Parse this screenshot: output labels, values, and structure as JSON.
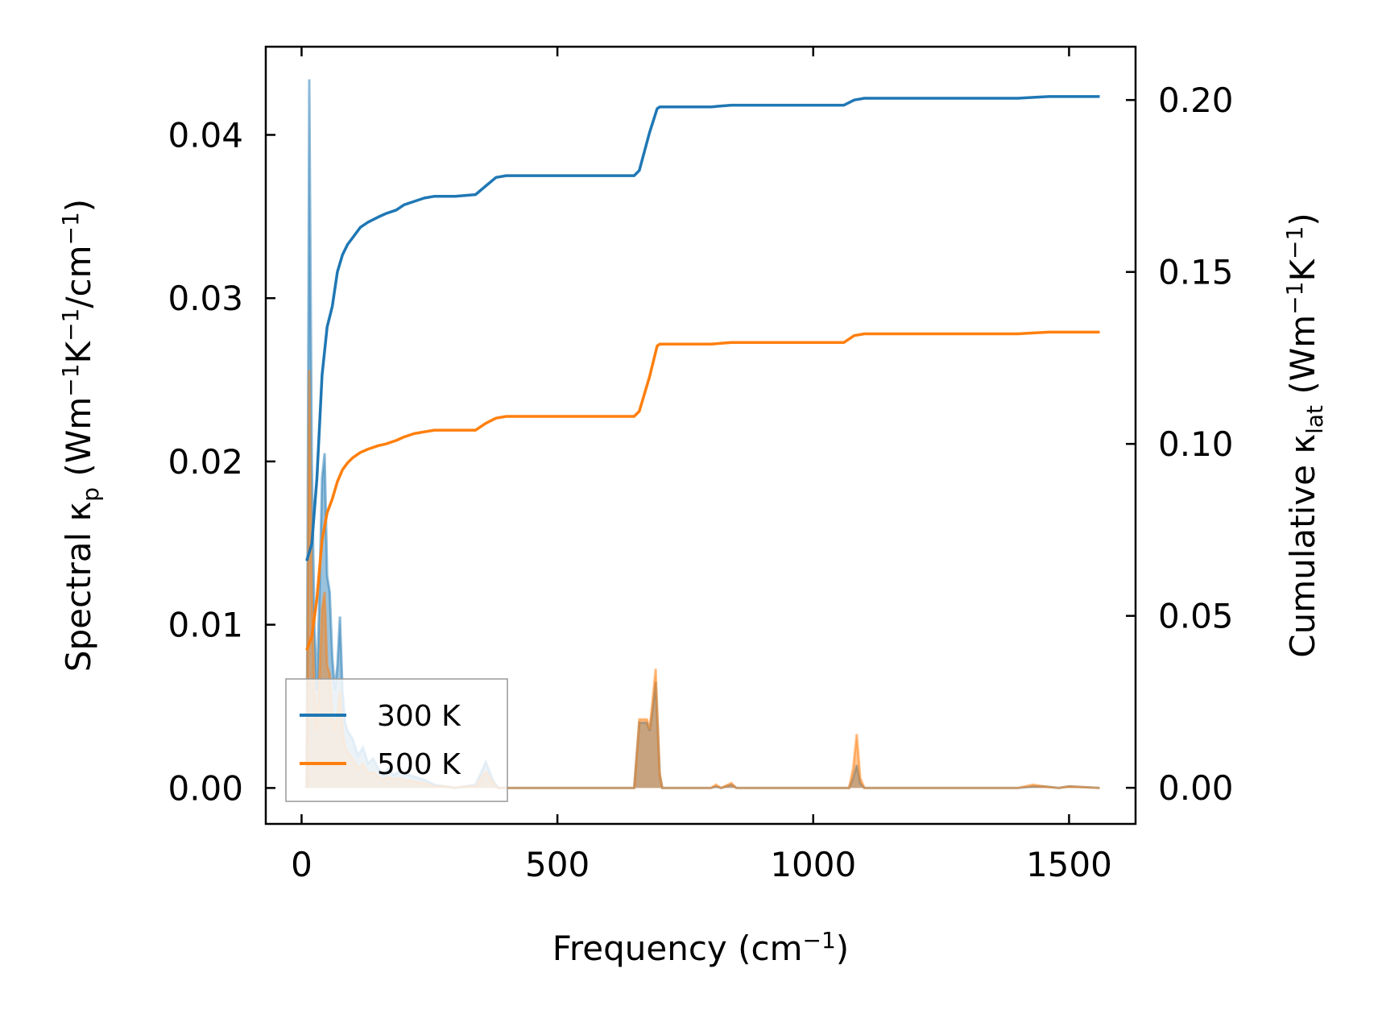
{
  "chart_data": {
    "type": "line",
    "title": "",
    "xlabel": "Frequency (cm",
    "xlabel_sup": "−1",
    "xlabel_tail": ")",
    "ylabel_left": {
      "segments": [
        {
          "t": "Spectral κ",
          "style": "normal"
        },
        {
          "t": "p",
          "style": "sub"
        },
        {
          "t": " (Wm",
          "style": "normal"
        },
        {
          "t": "−1",
          "style": "sup"
        },
        {
          "t": "K",
          "style": "normal"
        },
        {
          "t": "−1",
          "style": "sup"
        },
        {
          "t": "/cm",
          "style": "normal"
        },
        {
          "t": "−1",
          "style": "sup"
        },
        {
          "t": ")",
          "style": "normal"
        }
      ]
    },
    "ylabel_right": {
      "segments": [
        {
          "t": "Cumulative κ",
          "style": "normal"
        },
        {
          "t": "lat",
          "style": "sub"
        },
        {
          "t": " (Wm",
          "style": "normal"
        },
        {
          "t": "−1",
          "style": "sup"
        },
        {
          "t": "K",
          "style": "normal"
        },
        {
          "t": "−1",
          "style": "sup"
        },
        {
          "t": ")",
          "style": "normal"
        }
      ]
    },
    "xlim": [
      -70,
      1630
    ],
    "ylim_left": [
      -0.0022,
      0.0454
    ],
    "ylim_right": [
      -0.0105,
      0.2155
    ],
    "x_ticks": [
      0,
      500,
      1000,
      1500
    ],
    "x_tick_labels": [
      "0",
      "500",
      "1000",
      "1500"
    ],
    "y_left_ticks": [
      0.0,
      0.01,
      0.02,
      0.03,
      0.04
    ],
    "y_left_tick_labels": [
      "0.00",
      "0.01",
      "0.02",
      "0.03",
      "0.04"
    ],
    "y_right_ticks": [
      0.0,
      0.05,
      0.1,
      0.15,
      0.2
    ],
    "y_right_tick_labels": [
      "0.00",
      "0.05",
      "0.10",
      "0.15",
      "0.20"
    ],
    "grid": false,
    "legend_position": "lower-left",
    "series": [
      {
        "name": "300 K",
        "color": "#1f77b4",
        "cumulative": [
          [
            10,
            0.066
          ],
          [
            20,
            0.071
          ],
          [
            30,
            0.09
          ],
          [
            40,
            0.12
          ],
          [
            50,
            0.134
          ],
          [
            60,
            0.14
          ],
          [
            70,
            0.15
          ],
          [
            80,
            0.155
          ],
          [
            90,
            0.158
          ],
          [
            100,
            0.16
          ],
          [
            115,
            0.163
          ],
          [
            130,
            0.1645
          ],
          [
            150,
            0.166
          ],
          [
            165,
            0.167
          ],
          [
            185,
            0.168
          ],
          [
            200,
            0.1695
          ],
          [
            220,
            0.1705
          ],
          [
            240,
            0.1715
          ],
          [
            260,
            0.172
          ],
          [
            300,
            0.172
          ],
          [
            340,
            0.1725
          ],
          [
            360,
            0.175
          ],
          [
            380,
            0.1775
          ],
          [
            400,
            0.178
          ],
          [
            650,
            0.178
          ],
          [
            660,
            0.1795
          ],
          [
            680,
            0.1905
          ],
          [
            695,
            0.1975
          ],
          [
            700,
            0.198
          ],
          [
            800,
            0.198
          ],
          [
            840,
            0.1985
          ],
          [
            900,
            0.1985
          ],
          [
            1060,
            0.1985
          ],
          [
            1080,
            0.2
          ],
          [
            1100,
            0.2005
          ],
          [
            1400,
            0.2005
          ],
          [
            1460,
            0.201
          ],
          [
            1500,
            0.201
          ],
          [
            1560,
            0.201
          ]
        ],
        "spectral": [
          [
            10,
            0.0
          ],
          [
            15,
            0.0434
          ],
          [
            20,
            0.02
          ],
          [
            25,
            0.01
          ],
          [
            30,
            0.006
          ],
          [
            35,
            0.012
          ],
          [
            40,
            0.019
          ],
          [
            45,
            0.0205
          ],
          [
            50,
            0.013
          ],
          [
            55,
            0.012
          ],
          [
            60,
            0.008
          ],
          [
            65,
            0.006
          ],
          [
            70,
            0.0075
          ],
          [
            75,
            0.0105
          ],
          [
            80,
            0.006
          ],
          [
            85,
            0.004
          ],
          [
            90,
            0.0035
          ],
          [
            100,
            0.003
          ],
          [
            110,
            0.002
          ],
          [
            120,
            0.0025
          ],
          [
            130,
            0.0015
          ],
          [
            140,
            0.0018
          ],
          [
            150,
            0.0012
          ],
          [
            160,
            0.0008
          ],
          [
            170,
            0.0012
          ],
          [
            180,
            0.0008
          ],
          [
            190,
            0.001
          ],
          [
            200,
            0.0009
          ],
          [
            220,
            0.0007
          ],
          [
            240,
            0.0005
          ],
          [
            260,
            0.0002
          ],
          [
            280,
            0.0001
          ],
          [
            300,
            0.0
          ],
          [
            320,
            0.0001
          ],
          [
            340,
            0.0002
          ],
          [
            360,
            0.0016
          ],
          [
            375,
            0.0004
          ],
          [
            385,
            0.0
          ],
          [
            650,
            0.0
          ],
          [
            660,
            0.004
          ],
          [
            675,
            0.004
          ],
          [
            680,
            0.0035
          ],
          [
            685,
            0.0045
          ],
          [
            692,
            0.0065
          ],
          [
            700,
            0.0008
          ],
          [
            705,
            0.0
          ],
          [
            800,
            0.0
          ],
          [
            810,
            0.0001
          ],
          [
            820,
            0.0
          ],
          [
            840,
            0.0002
          ],
          [
            850,
            0.0
          ],
          [
            1070,
            0.0
          ],
          [
            1078,
            0.0006
          ],
          [
            1085,
            0.0014
          ],
          [
            1092,
            0.0003
          ],
          [
            1100,
            0.0
          ],
          [
            1400,
            0.0
          ],
          [
            1430,
            0.0001
          ],
          [
            1450,
            0.0001
          ],
          [
            1480,
            0.0
          ],
          [
            1500,
            0.0001
          ],
          [
            1560,
            0.0
          ]
        ]
      },
      {
        "name": "500 K",
        "color": "#ff7f0e",
        "cumulative": [
          [
            10,
            0.04
          ],
          [
            20,
            0.044
          ],
          [
            30,
            0.055
          ],
          [
            40,
            0.072
          ],
          [
            50,
            0.08
          ],
          [
            60,
            0.084
          ],
          [
            70,
            0.089
          ],
          [
            80,
            0.0925
          ],
          [
            90,
            0.0945
          ],
          [
            100,
            0.096
          ],
          [
            115,
            0.0975
          ],
          [
            130,
            0.0985
          ],
          [
            150,
            0.0995
          ],
          [
            165,
            0.1
          ],
          [
            185,
            0.101
          ],
          [
            200,
            0.102
          ],
          [
            220,
            0.103
          ],
          [
            240,
            0.1035
          ],
          [
            260,
            0.104
          ],
          [
            300,
            0.104
          ],
          [
            340,
            0.104
          ],
          [
            360,
            0.106
          ],
          [
            380,
            0.1075
          ],
          [
            400,
            0.108
          ],
          [
            650,
            0.108
          ],
          [
            660,
            0.1095
          ],
          [
            680,
            0.1195
          ],
          [
            695,
            0.1285
          ],
          [
            700,
            0.129
          ],
          [
            800,
            0.129
          ],
          [
            840,
            0.1295
          ],
          [
            900,
            0.1295
          ],
          [
            1060,
            0.1295
          ],
          [
            1080,
            0.1315
          ],
          [
            1100,
            0.132
          ],
          [
            1400,
            0.132
          ],
          [
            1460,
            0.1325
          ],
          [
            1500,
            0.1325
          ],
          [
            1560,
            0.1325
          ]
        ],
        "spectral": [
          [
            10,
            0.0
          ],
          [
            15,
            0.0256
          ],
          [
            20,
            0.012
          ],
          [
            25,
            0.006
          ],
          [
            30,
            0.0035
          ],
          [
            35,
            0.007
          ],
          [
            40,
            0.011
          ],
          [
            45,
            0.012
          ],
          [
            50,
            0.0075
          ],
          [
            55,
            0.007
          ],
          [
            60,
            0.0045
          ],
          [
            65,
            0.0035
          ],
          [
            70,
            0.0045
          ],
          [
            75,
            0.006
          ],
          [
            80,
            0.0035
          ],
          [
            85,
            0.0025
          ],
          [
            90,
            0.0022
          ],
          [
            100,
            0.0018
          ],
          [
            110,
            0.0012
          ],
          [
            120,
            0.0015
          ],
          [
            130,
            0.0009
          ],
          [
            140,
            0.001
          ],
          [
            150,
            0.0007
          ],
          [
            160,
            0.0005
          ],
          [
            170,
            0.0007
          ],
          [
            180,
            0.0005
          ],
          [
            190,
            0.0006
          ],
          [
            200,
            0.0005
          ],
          [
            220,
            0.0004
          ],
          [
            240,
            0.0003
          ],
          [
            260,
            0.0001
          ],
          [
            280,
            0.0001
          ],
          [
            300,
            0.0
          ],
          [
            320,
            0.0001
          ],
          [
            340,
            0.0001
          ],
          [
            360,
            0.001
          ],
          [
            375,
            0.0003
          ],
          [
            385,
            0.0
          ],
          [
            650,
            0.0
          ],
          [
            660,
            0.0042
          ],
          [
            675,
            0.0042
          ],
          [
            680,
            0.0036
          ],
          [
            685,
            0.005
          ],
          [
            692,
            0.0073
          ],
          [
            700,
            0.0009
          ],
          [
            705,
            0.0
          ],
          [
            800,
            0.0
          ],
          [
            810,
            0.0002
          ],
          [
            820,
            0.0
          ],
          [
            840,
            0.0003
          ],
          [
            850,
            0.0
          ],
          [
            1070,
            0.0
          ],
          [
            1078,
            0.0012
          ],
          [
            1085,
            0.0033
          ],
          [
            1092,
            0.0006
          ],
          [
            1100,
            0.0
          ],
          [
            1400,
            0.0
          ],
          [
            1430,
            0.0002
          ],
          [
            1450,
            0.0001
          ],
          [
            1480,
            0.0
          ],
          [
            1500,
            0.0001
          ],
          [
            1560,
            0.0
          ]
        ]
      }
    ]
  }
}
